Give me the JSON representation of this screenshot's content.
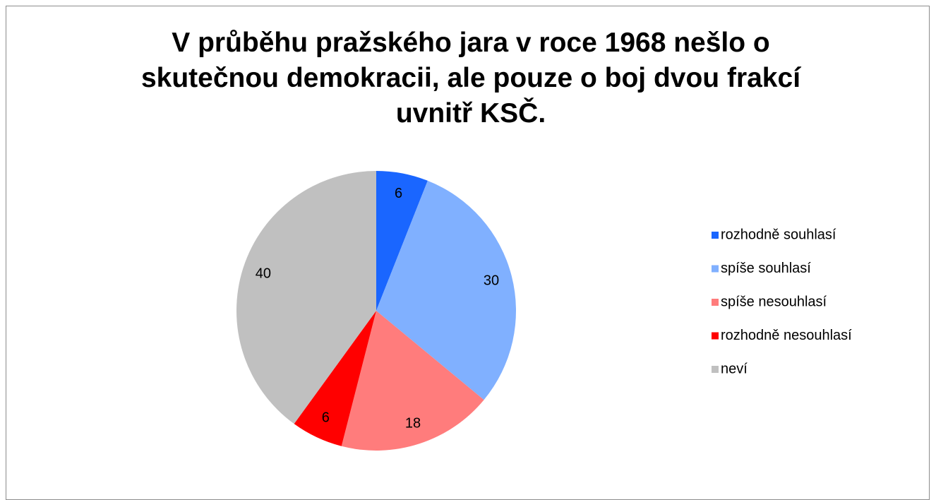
{
  "chart_data": {
    "type": "pie",
    "title": "V průběhu pražského jara v roce 1968 nešlo o\nskutečnou demokracii, ale pouze o boj dvou frakcí\nuvnitř KSČ.",
    "categories": [
      "rozhodně souhlasí",
      "spíše souhlasí",
      "spíše nesouhlasí",
      "rozhodně nesouhlasí",
      "neví"
    ],
    "values": [
      6,
      30,
      18,
      6,
      40
    ],
    "colors": [
      "#1a66ff",
      "#80b0ff",
      "#ff7c7c",
      "#ff0000",
      "#c0c0c0"
    ],
    "legend": "right"
  }
}
